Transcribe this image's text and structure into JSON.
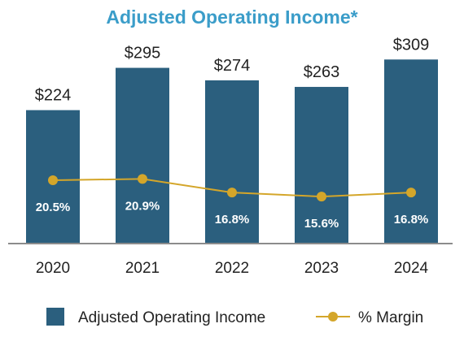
{
  "colors": {
    "title": "#3b9dc9",
    "bar": "#2b5f7e",
    "line": "#d4a62a",
    "axis": "#8c8c8c",
    "text": "#222222",
    "pct_text": "#ffffff"
  },
  "chart_data": {
    "type": "bar",
    "title": "Adjusted Operating Income*",
    "xlabel": "",
    "ylabel": "",
    "categories": [
      "2020",
      "2021",
      "2022",
      "2023",
      "2024"
    ],
    "series": [
      {
        "name": "Adjusted Operating Income",
        "type": "bar",
        "values": [
          224,
          295,
          274,
          263,
          309
        ],
        "labels": [
          "$224",
          "$295",
          "$274",
          "$263",
          "$309"
        ]
      },
      {
        "name": "% Margin",
        "type": "line",
        "values": [
          20.5,
          20.9,
          16.8,
          15.6,
          16.8
        ],
        "labels": [
          "20.5%",
          "20.9%",
          "16.8%",
          "15.6%",
          "16.8%"
        ]
      }
    ],
    "ylim": [
      0,
      340
    ],
    "grid": false,
    "legend_position": "bottom"
  }
}
